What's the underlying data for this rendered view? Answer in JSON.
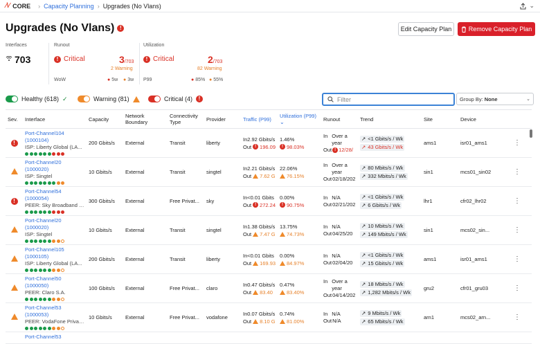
{
  "topbar": {
    "app": "CORE",
    "crumb1": "Capacity Planning",
    "crumb2": "Upgrades (No Vlans)"
  },
  "page": {
    "title": "Upgrades (No Vlans)",
    "edit_label": "Edit Capacity Plan",
    "remove_label": "Remove Capacity Plan"
  },
  "stats": {
    "interfaces_label": "Interfaces",
    "interfaces_value": "703",
    "runout_label": "Runout",
    "runout_status": "Critical",
    "runout_count": "3",
    "runout_total": "/703",
    "runout_warning": "2 Warning",
    "runout_period": "WoW",
    "runout_5w": "5w",
    "runout_3w": "3w",
    "util_label": "Utilization",
    "util_status": "Critical",
    "util_count": "2",
    "util_total": "/703",
    "util_warning": "82 Warning",
    "util_period": "P99",
    "util_85": "85%",
    "util_55": "55%"
  },
  "filters": {
    "healthy": "Healthy (618)",
    "warning": "Warning (81)",
    "critical": "Critical (4)",
    "search_placeholder": "Filter",
    "groupby_label": "Group By:",
    "groupby_value": "None"
  },
  "columns": [
    "Sev.",
    "Interface",
    "Capacity",
    "Network Boundary",
    "Connectivity Type",
    "Provider",
    "Traffic (P99)",
    "Utilization (P99)",
    "Runout",
    "Trend",
    "Site",
    "Device"
  ],
  "rows": [
    {
      "sev": "critical",
      "name": "Port-Channel104",
      "id": "(1000104)",
      "sub": "ISP: Liberty Global (LA...",
      "dots": "ggggggrrr",
      "capacity": "200 Gbits/s",
      "boundary": "External",
      "conn": "Transit",
      "provider": "liberty",
      "tin": "In2.92 Gbits/s",
      "tout": "196.09",
      "util_in": "1.46%",
      "util_out": "98.03%",
      "r1": "In",
      "r1v": "Over a year",
      "r2": "Out",
      "r2v": "12/28/",
      "t1": "<1 Gbits/s / Wk",
      "t2": "43 Gbits/s / Wk",
      "site": "ams1",
      "device": "isr01_ams1"
    },
    {
      "sev": "warning",
      "name": "Port-Channel20",
      "id": "(1000020)",
      "sub": "ISP: Singtel",
      "dots": "gggggggoo",
      "capacity": "10 Gbits/s",
      "boundary": "External",
      "conn": "Transit",
      "provider": "singtel",
      "tin": "In2.21 Gbits/s",
      "tout": "7.62 G",
      "util_in": "22.06%",
      "util_out": "76.15%",
      "r1": "In",
      "r1v": "Over a year",
      "r2": "Out",
      "r2v": "02/18/202",
      "t1": "80 Mbits/s / Wk",
      "t2": "332 Mbits/s / Wk",
      "site": "sin1",
      "device": "mcs01_sin02"
    },
    {
      "sev": "critical",
      "name": "Port-Channel54",
      "id": "(1000054)",
      "sub": "PEER: Sky Broadband (...",
      "dots": "ggggggrrr",
      "capacity": "300 Gbits/s",
      "boundary": "External",
      "conn": "Free Privat...",
      "provider": "sky",
      "tin": "In<0.01 Gbits",
      "tout": "272.24",
      "util_in": "0.00%",
      "util_out": "90.75%",
      "r1": "In",
      "r1v": "N/A",
      "r2": "Out",
      "r2v": "02/21/202",
      "t1": "<1 Gbits/s / Wk",
      "t2": "6 Gbits/s / Wk",
      "site": "lhr1",
      "device": "cfr02_lhr02"
    },
    {
      "sev": "warning",
      "name": "Port-Channel20",
      "id": "(1000020)",
      "sub": "ISP: Singtel",
      "dots": "ggggggooe",
      "capacity": "10 Gbits/s",
      "boundary": "External",
      "conn": "Transit",
      "provider": "singtel",
      "tin": "In1.38 Gbits/s",
      "tout": "7.47 G",
      "util_in": "13.75%",
      "util_out": "74.73%",
      "r1": "In",
      "r1v": "N/A",
      "r2": "Out",
      "r2v": "04/25/20",
      "t1": "10 Mbits/s / Wk",
      "t2": "149 Mbits/s / Wk",
      "site": "sin1",
      "device": "mcs02_sin..."
    },
    {
      "sev": "warning",
      "name": "Port-Channel105",
      "id": "(1000105)",
      "sub": "ISP: Liberty Global (LA...",
      "dots": "ggggggooe",
      "capacity": "200 Gbits/s",
      "boundary": "External",
      "conn": "Transit",
      "provider": "liberty",
      "tin": "In<0.01 Gbits",
      "tout": "169.93",
      "util_in": "0.00%",
      "util_out": "84.97%",
      "r1": "In",
      "r1v": "N/A",
      "r2": "Out",
      "r2v": "02/04/20",
      "t1": "<1 Gbits/s / Wk",
      "t2": "15 Gbits/s / Wk",
      "site": "ams1",
      "device": "isr01_ams1"
    },
    {
      "sev": "warning",
      "name": "Port-Channel50",
      "id": "(1000050)",
      "sub": "PEER: Claro S.A.",
      "dots": "ggggggooe",
      "capacity": "100 Gbits/s",
      "boundary": "External",
      "conn": "Free Privat...",
      "provider": "claro",
      "tin": "In0.47 Gbits/s",
      "tout": "83.40",
      "util_in": "0.47%",
      "util_out": "83.40%",
      "r1": "In",
      "r1v": "Over a year",
      "r2": "Out",
      "r2v": "04/14/202",
      "t1": "18 Mbits/s / Wk",
      "t2": "1,282 Mbits/s / Wk",
      "site": "gru2",
      "device": "cfr01_gru03"
    },
    {
      "sev": "warning",
      "name": "Port-Channel53",
      "id": "(1000053)",
      "sub": "PEER: VodaFone Privat...",
      "dots": "ggggggooe",
      "capacity": "10 Gbits/s",
      "boundary": "External",
      "conn": "Free Privat...",
      "provider": "vodafone",
      "tin": "In0.07 Gbits/s",
      "tout": "8.10 G",
      "util_in": "0.74%",
      "util_out": "81.00%",
      "r1": "In",
      "r1v": "N/A",
      "r2": "Out",
      "r2v": "N/A",
      "t1": "9 Mbits/s / Wk",
      "t2": "65 Mbits/s / Wk",
      "site": "arn1",
      "device": "mcs02_arn..."
    },
    {
      "sev": "warning",
      "name": "Port-Channel53",
      "id": "",
      "sub": "",
      "dots": "",
      "capacity": "",
      "boundary": "",
      "conn": "",
      "provider": "",
      "tin": "",
      "tout": "",
      "util_in": "",
      "util_out": "",
      "r1": "",
      "r1v": "",
      "r2": "",
      "r2v": "",
      "t1": "",
      "t2": "",
      "site": "",
      "device": ""
    }
  ]
}
